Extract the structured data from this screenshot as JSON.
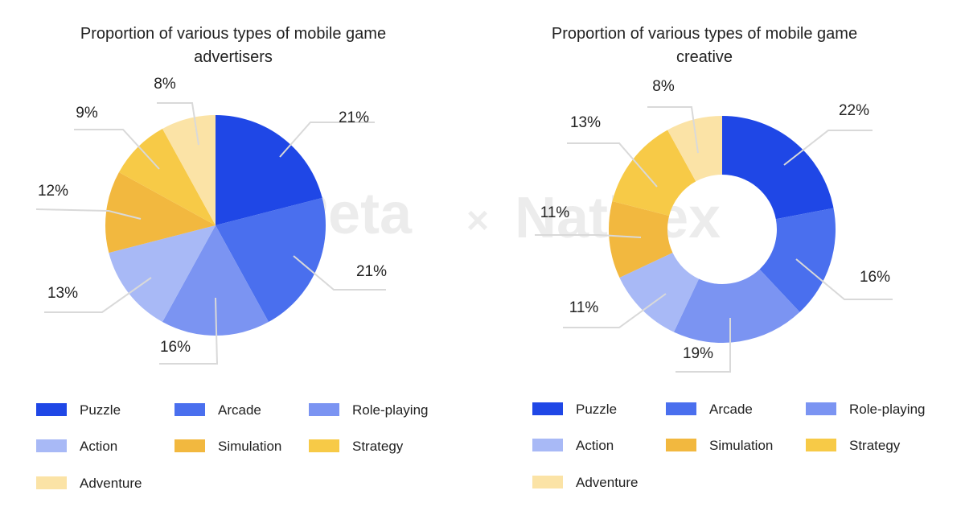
{
  "watermark": {
    "left_text": "ıllPeta",
    "separator": "×",
    "right_text": "Nativex"
  },
  "chart_data": [
    {
      "type": "pie",
      "title_lines": [
        "Proportion of various types of mobile game",
        "advertisers"
      ],
      "categories": [
        "Puzzle",
        "Arcade",
        "Role-playing",
        "Action",
        "Simulation",
        "Strategy",
        "Adventure"
      ],
      "values": [
        21,
        21,
        16,
        13,
        12,
        9,
        8
      ],
      "value_labels": [
        "21%",
        "21%",
        "16%",
        "13%",
        "12%",
        "9%",
        "8%"
      ],
      "colors": [
        "#1f47e6",
        "#4a6fee",
        "#7b94f2",
        "#a8b9f6",
        "#f2b83f",
        "#f7ca47",
        "#fbe3a6"
      ],
      "legend_position": "bottom"
    },
    {
      "type": "donut",
      "title_lines": [
        "Proportion of various types of mobile game",
        "creative"
      ],
      "categories": [
        "Puzzle",
        "Arcade",
        "Role-playing",
        "Action",
        "Simulation",
        "Strategy",
        "Adventure"
      ],
      "values": [
        22,
        16,
        19,
        11,
        11,
        13,
        8
      ],
      "value_labels": [
        "22%",
        "16%",
        "19%",
        "11%",
        "11%",
        "13%",
        "8%"
      ],
      "colors": [
        "#1f47e6",
        "#4a6fee",
        "#7b94f2",
        "#a8b9f6",
        "#f2b83f",
        "#f7ca47",
        "#fbe3a6"
      ],
      "legend_position": "bottom"
    }
  ]
}
